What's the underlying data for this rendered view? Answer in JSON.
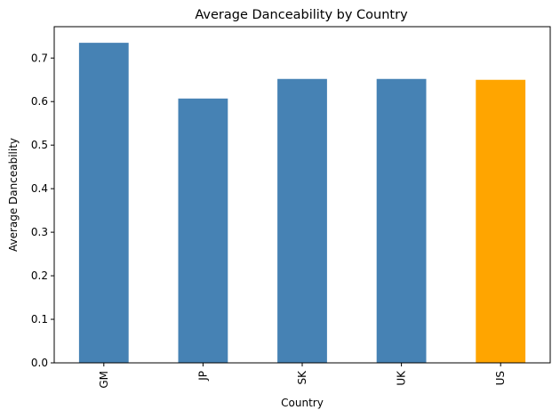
{
  "chart_data": {
    "type": "bar",
    "title": "Average Danceability by Country",
    "xlabel": "Country",
    "ylabel": "Average Danceability",
    "categories": [
      "GM",
      "JP",
      "SK",
      "UK",
      "US"
    ],
    "values": [
      0.735,
      0.607,
      0.652,
      0.652,
      0.65
    ],
    "bar_colors": [
      "#4682b4",
      "#4682b4",
      "#4682b4",
      "#4682b4",
      "#ffa500"
    ],
    "ylim": [
      0,
      0.772
    ],
    "yticks": [
      0.0,
      0.1,
      0.2,
      0.3,
      0.4,
      0.5,
      0.6,
      0.7
    ],
    "ytick_labels": [
      "0.0",
      "0.1",
      "0.2",
      "0.3",
      "0.4",
      "0.5",
      "0.6",
      "0.7"
    ],
    "grid": false,
    "legend": "none"
  }
}
